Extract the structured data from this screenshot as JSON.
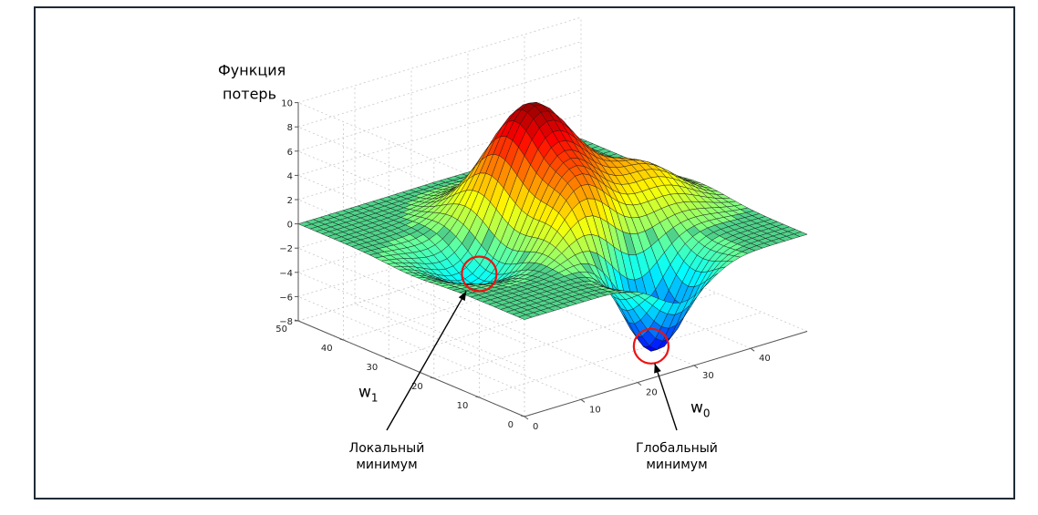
{
  "chart_data": {
    "type": "surface",
    "z_label_line1": "Функция",
    "z_label_line2": "потерь",
    "x_label_base": "w",
    "x_label_sub": "0",
    "y_label_base": "w",
    "y_label_sub": "1",
    "x_ticks": [
      "0",
      "10",
      "20",
      "30",
      "40"
    ],
    "y_ticks": [
      "0",
      "10",
      "20",
      "30",
      "40",
      "50"
    ],
    "z_ticks": [
      "10",
      "8",
      "6",
      "4",
      "2",
      "0",
      "−2",
      "−4",
      "−6",
      "−8"
    ],
    "x_range": [
      0,
      50
    ],
    "y_range": [
      0,
      50
    ],
    "z_range": [
      -8,
      10
    ],
    "grid": true,
    "colormap": "jet",
    "surface_peaks": [
      {
        "w0": 25,
        "w1": 30,
        "z": 9.5
      },
      {
        "w0": 24,
        "w1": 17,
        "z": 4.5
      },
      {
        "w0": 39,
        "w1": 23,
        "z": 3.5
      },
      {
        "w0": 12,
        "w1": 25,
        "z": -3
      },
      {
        "w0": 28,
        "w1": 7,
        "z": -8
      }
    ],
    "annotations": [
      {
        "line1": "Локальный",
        "line2": "минимум",
        "w0": 12,
        "w1": 25
      },
      {
        "line1": "Глобальный",
        "line2": "минимум",
        "w0": 28,
        "w1": 7
      }
    ]
  }
}
